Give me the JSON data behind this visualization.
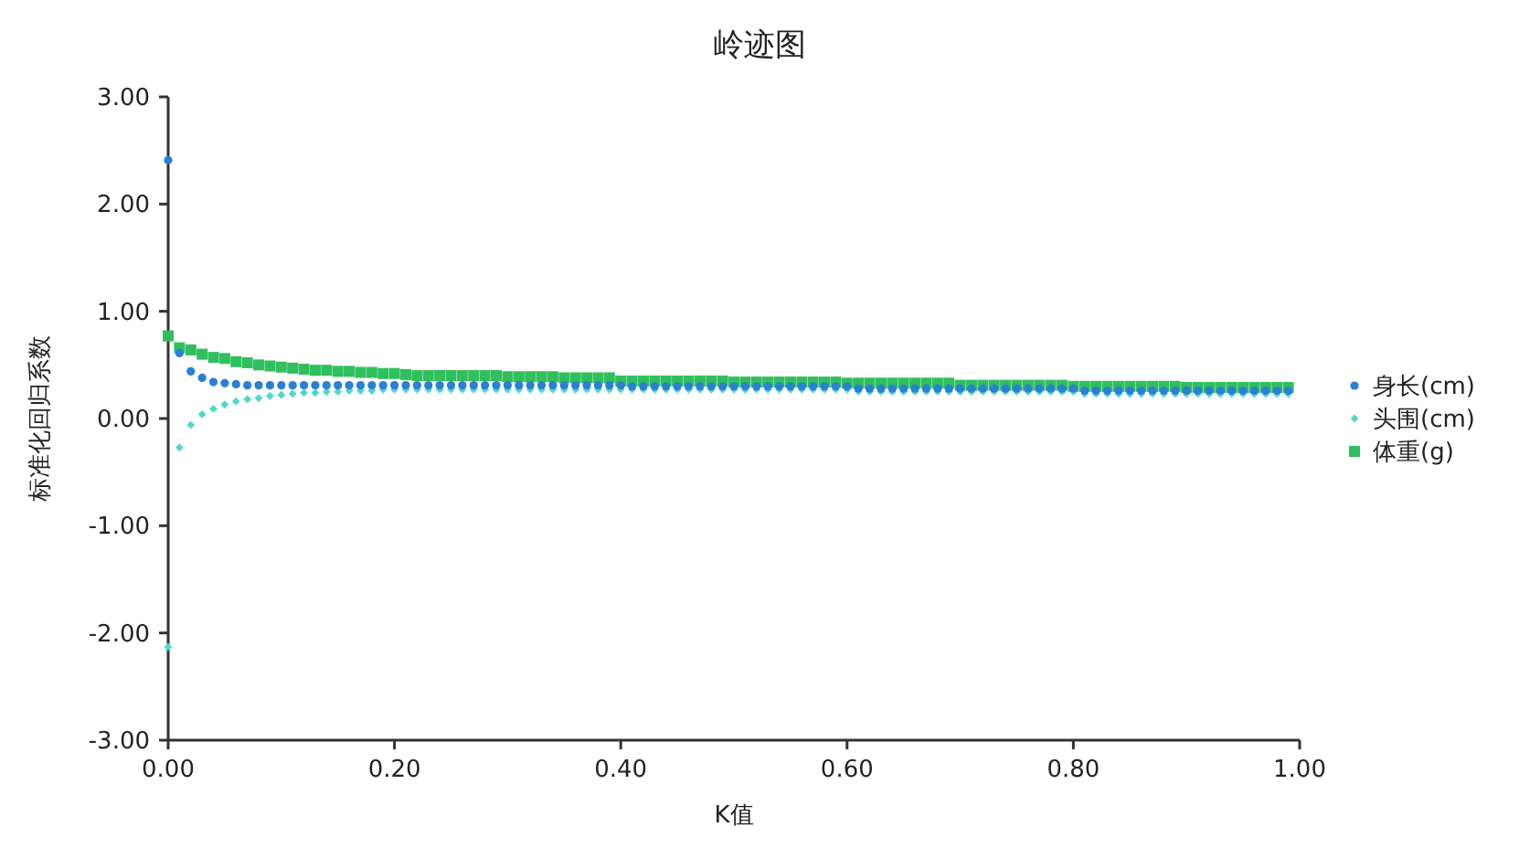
{
  "chart_data": {
    "type": "scatter",
    "title": "岭迹图",
    "xlabel": "K值",
    "ylabel": "标准化回归系数",
    "x": [
      0,
      0.01,
      0.02,
      0.03,
      0.04,
      0.05,
      0.06,
      0.07,
      0.08,
      0.09,
      0.1,
      0.11,
      0.12,
      0.13,
      0.14,
      0.15,
      0.16,
      0.17,
      0.18,
      0.19,
      0.2,
      0.21,
      0.22,
      0.23,
      0.24,
      0.25,
      0.26,
      0.27,
      0.28,
      0.29,
      0.3,
      0.31,
      0.32,
      0.33,
      0.34,
      0.35,
      0.36,
      0.37,
      0.38,
      0.39,
      0.4,
      0.41,
      0.42,
      0.43,
      0.44,
      0.45,
      0.46,
      0.47,
      0.48,
      0.49,
      0.5,
      0.51,
      0.52,
      0.53,
      0.54,
      0.55,
      0.56,
      0.57,
      0.58,
      0.59,
      0.6,
      0.61,
      0.62,
      0.63,
      0.64,
      0.65,
      0.66,
      0.67,
      0.68,
      0.69,
      0.7,
      0.71,
      0.72,
      0.73,
      0.74,
      0.75,
      0.76,
      0.77,
      0.78,
      0.79,
      0.8,
      0.81,
      0.82,
      0.83,
      0.84,
      0.85,
      0.86,
      0.87,
      0.88,
      0.89,
      0.9,
      0.91,
      0.92,
      0.93,
      0.94,
      0.95,
      0.96,
      0.97,
      0.98,
      0.99
    ],
    "series": [
      {
        "name": "身长(cm)",
        "color": "#2a7fd6",
        "marker": "circle",
        "values": [
          2.41,
          0.61,
          0.44,
          0.38,
          0.34,
          0.33,
          0.32,
          0.31,
          0.31,
          0.31,
          0.31,
          0.31,
          0.31,
          0.31,
          0.31,
          0.31,
          0.31,
          0.31,
          0.31,
          0.31,
          0.31,
          0.31,
          0.31,
          0.31,
          0.31,
          0.31,
          0.31,
          0.31,
          0.31,
          0.31,
          0.31,
          0.31,
          0.31,
          0.31,
          0.31,
          0.31,
          0.31,
          0.31,
          0.31,
          0.31,
          0.31,
          0.3,
          0.3,
          0.3,
          0.3,
          0.3,
          0.3,
          0.3,
          0.3,
          0.3,
          0.3,
          0.3,
          0.3,
          0.3,
          0.3,
          0.3,
          0.3,
          0.3,
          0.3,
          0.3,
          0.3,
          0.28,
          0.28,
          0.28,
          0.28,
          0.28,
          0.28,
          0.28,
          0.28,
          0.28,
          0.28,
          0.28,
          0.28,
          0.28,
          0.28,
          0.28,
          0.28,
          0.28,
          0.28,
          0.28,
          0.28,
          0.26,
          0.26,
          0.26,
          0.26,
          0.26,
          0.26,
          0.26,
          0.26,
          0.26,
          0.26,
          0.26,
          0.26,
          0.26,
          0.26,
          0.26,
          0.26,
          0.26,
          0.26,
          0.26
        ]
      },
      {
        "name": "头围(cm)",
        "color": "#4fd8cc",
        "marker": "diamond",
        "values": [
          -2.13,
          -0.27,
          -0.06,
          0.04,
          0.09,
          0.13,
          0.16,
          0.18,
          0.19,
          0.21,
          0.22,
          0.23,
          0.24,
          0.24,
          0.25,
          0.25,
          0.26,
          0.26,
          0.26,
          0.27,
          0.27,
          0.27,
          0.27,
          0.27,
          0.27,
          0.27,
          0.27,
          0.27,
          0.27,
          0.27,
          0.27,
          0.27,
          0.27,
          0.27,
          0.27,
          0.27,
          0.27,
          0.27,
          0.27,
          0.27,
          0.27,
          0.27,
          0.27,
          0.27,
          0.27,
          0.27,
          0.27,
          0.27,
          0.27,
          0.27,
          0.27,
          0.27,
          0.27,
          0.27,
          0.27,
          0.27,
          0.27,
          0.27,
          0.27,
          0.27,
          0.27,
          0.25,
          0.25,
          0.25,
          0.25,
          0.25,
          0.25,
          0.25,
          0.25,
          0.25,
          0.25,
          0.25,
          0.25,
          0.25,
          0.25,
          0.25,
          0.25,
          0.25,
          0.25,
          0.25,
          0.25,
          0.23,
          0.23,
          0.23,
          0.23,
          0.23,
          0.23,
          0.23,
          0.23,
          0.23,
          0.23,
          0.23,
          0.23,
          0.23,
          0.23,
          0.23,
          0.23,
          0.23,
          0.23,
          0.23
        ]
      },
      {
        "name": "体重(g)",
        "color": "#2fbf5c",
        "marker": "square",
        "values": [
          0.77,
          0.66,
          0.64,
          0.6,
          0.57,
          0.56,
          0.53,
          0.52,
          0.5,
          0.49,
          0.48,
          0.47,
          0.46,
          0.45,
          0.45,
          0.44,
          0.44,
          0.43,
          0.43,
          0.42,
          0.42,
          0.41,
          0.4,
          0.4,
          0.4,
          0.4,
          0.4,
          0.4,
          0.4,
          0.4,
          0.39,
          0.39,
          0.39,
          0.39,
          0.39,
          0.38,
          0.38,
          0.38,
          0.38,
          0.38,
          0.35,
          0.35,
          0.35,
          0.35,
          0.35,
          0.35,
          0.35,
          0.35,
          0.35,
          0.35,
          0.34,
          0.34,
          0.34,
          0.34,
          0.34,
          0.34,
          0.34,
          0.34,
          0.34,
          0.34,
          0.33,
          0.33,
          0.33,
          0.33,
          0.33,
          0.33,
          0.33,
          0.33,
          0.33,
          0.33,
          0.31,
          0.31,
          0.31,
          0.31,
          0.31,
          0.31,
          0.31,
          0.31,
          0.31,
          0.31,
          0.3,
          0.3,
          0.3,
          0.3,
          0.3,
          0.3,
          0.3,
          0.3,
          0.3,
          0.3,
          0.29,
          0.29,
          0.29,
          0.29,
          0.29,
          0.29,
          0.29,
          0.29,
          0.29,
          0.29
        ]
      }
    ],
    "xlim": [
      0,
      1
    ],
    "xticks": [
      {
        "value": 0,
        "label": "0.00"
      },
      {
        "value": 0.2,
        "label": "0.20"
      },
      {
        "value": 0.4,
        "label": "0.40"
      },
      {
        "value": 0.6,
        "label": "0.60"
      },
      {
        "value": 0.8,
        "label": "0.80"
      },
      {
        "value": 1,
        "label": "1.00"
      }
    ],
    "ylim": [
      -3,
      3
    ],
    "yticks": [
      {
        "value": -3,
        "label": "-3.00"
      },
      {
        "value": -2,
        "label": "-2.00"
      },
      {
        "value": -1,
        "label": "-1.00"
      },
      {
        "value": 0,
        "label": "0.00"
      },
      {
        "value": 1,
        "label": "1.00"
      },
      {
        "value": 2,
        "label": "2.00"
      },
      {
        "value": 3,
        "label": "3.00"
      }
    ],
    "legend": "right",
    "grid": false
  }
}
